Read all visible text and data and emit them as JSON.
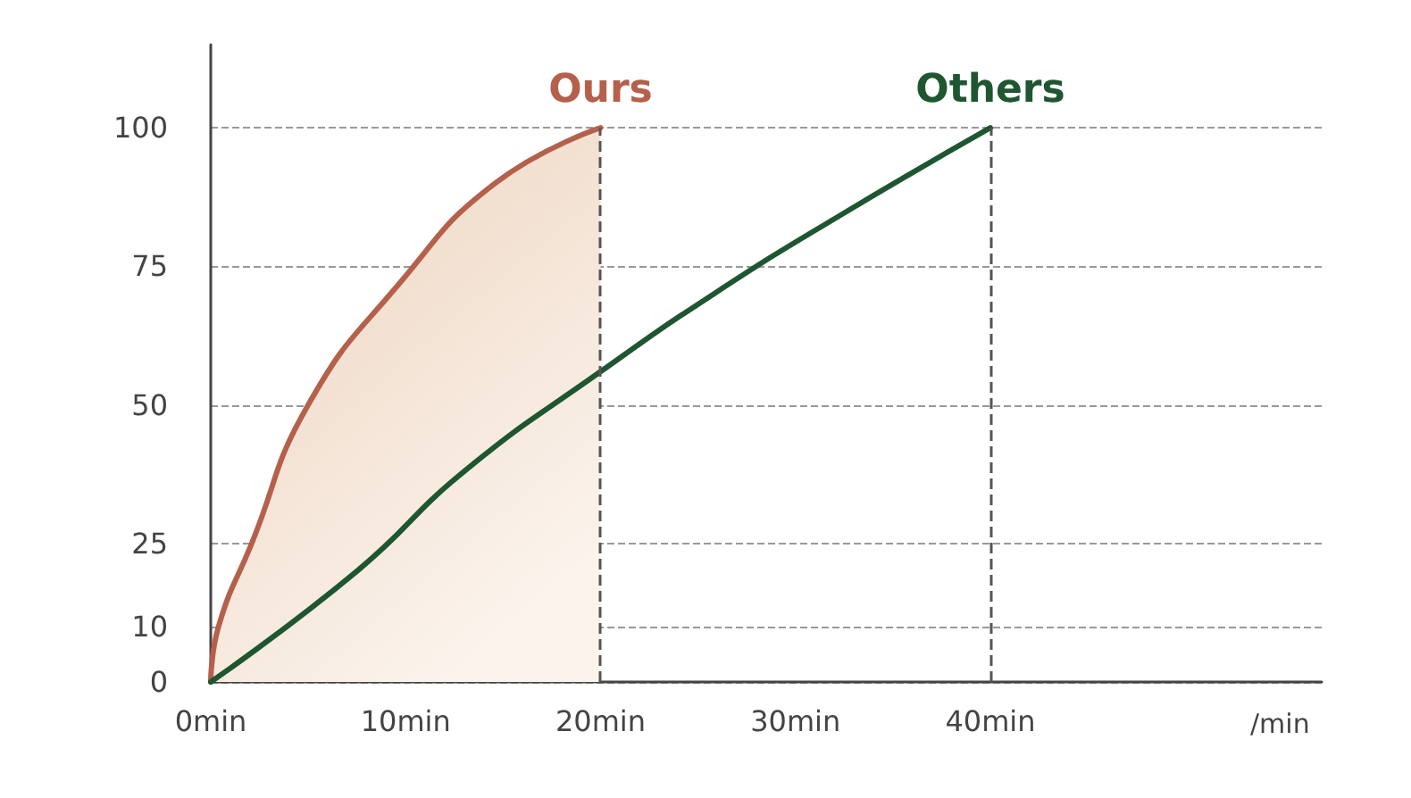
{
  "chart_data": {
    "type": "area",
    "xlabel": "/min",
    "series": [
      {
        "name": "Ours",
        "color": "#b5604b",
        "x": [
          0,
          0.4,
          2.1,
          5,
          9.7,
          14.6,
          20
        ],
        "values": [
          0,
          10,
          25,
          50,
          72,
          90,
          100
        ]
      },
      {
        "name": "Others",
        "type": "line",
        "color": "#1e5631",
        "x": [
          0,
          7.5,
          13,
          20,
          25.8,
          32.2,
          40
        ],
        "values": [
          0,
          20,
          38,
          56,
          70,
          84,
          100
        ]
      }
    ],
    "xlim": [
      0,
      57
    ],
    "xticks": [
      {
        "value": 0,
        "label": "0min"
      },
      {
        "value": 10,
        "label": "10min"
      },
      {
        "value": 20,
        "label": "20min"
      },
      {
        "value": 30,
        "label": "30min"
      },
      {
        "value": 40,
        "label": "40min"
      }
    ],
    "ylim": [
      0,
      115
    ],
    "yticks": [
      0,
      10,
      25,
      50,
      75,
      100
    ],
    "ref_lines": [
      {
        "axis": "x",
        "value": 20,
        "line_style": "dashed",
        "color": "#555555"
      },
      {
        "axis": "x",
        "value": 40,
        "line_style": "dashed",
        "color": "#555555"
      }
    ],
    "grid": "y",
    "legend": false,
    "marker": "none",
    "line_style": "solid"
  }
}
